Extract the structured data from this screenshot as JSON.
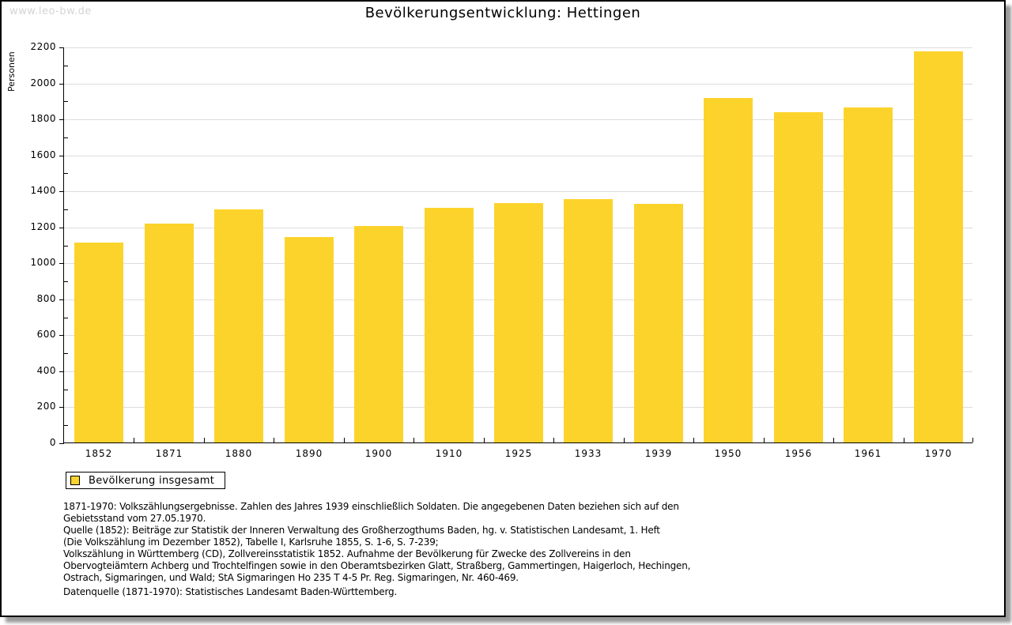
{
  "watermark": "www.leo-bw.de",
  "chart_data": {
    "type": "bar",
    "title": "Bevölkerungsentwicklung: Hettingen",
    "xlabel": "",
    "ylabel": "Personen",
    "categories": [
      "1852",
      "1871",
      "1880",
      "1890",
      "1900",
      "1910",
      "1925",
      "1933",
      "1939",
      "1950",
      "1956",
      "1961",
      "1970"
    ],
    "values": [
      1113,
      1218,
      1297,
      1141,
      1204,
      1306,
      1331,
      1353,
      1326,
      1916,
      1835,
      1862,
      2175
    ],
    "series_name": "Bevölkerung insgesamt",
    "ylim": [
      0,
      2200
    ],
    "ytick_step": 200,
    "ytick_minor_step": 100,
    "grid": true,
    "legend": {
      "label": "Bevölkerung insgesamt",
      "position": "bottom-left"
    },
    "colors": {
      "bar": "#FCD32B",
      "grid": "#DCDCDC",
      "axis": "#000000",
      "watermark": "#D4D4D4"
    }
  },
  "footnotes": [
    "1871-1970: Volkszählungsergebnisse. Zahlen des Jahres 1939 einschließlich Soldaten. Die angegebenen Daten beziehen sich auf den",
    "Gebietsstand vom 27.05.1970.",
    "Quelle (1852): Beiträge zur Statistik der Inneren Verwaltung des Großherzogthums Baden, hg. v. Statistischen Landesamt, 1. Heft",
    "(Die Volkszählung im Dezember 1852), Tabelle I, Karlsruhe 1855, S. 1-6, S. 7-239;",
    "Volkszählung in Württemberg (CD), Zollvereinsstatistik 1852. Aufnahme der Bevölkerung für Zwecke des Zollvereins in den",
    "Obervogteiämtern Achberg und Trochtelfingen sowie in den Oberamtsbezirken Glatt, Straßberg, Gammertingen, Haigerloch, Hechingen,",
    "Ostrach, Sigmaringen, und Wald; StA Sigmaringen Ho 235 T 4-5 Pr. Reg. Sigmaringen, Nr. 460-469."
  ],
  "datasource": "Datenquelle (1871-1970): Statistisches Landesamt Baden-Württemberg."
}
